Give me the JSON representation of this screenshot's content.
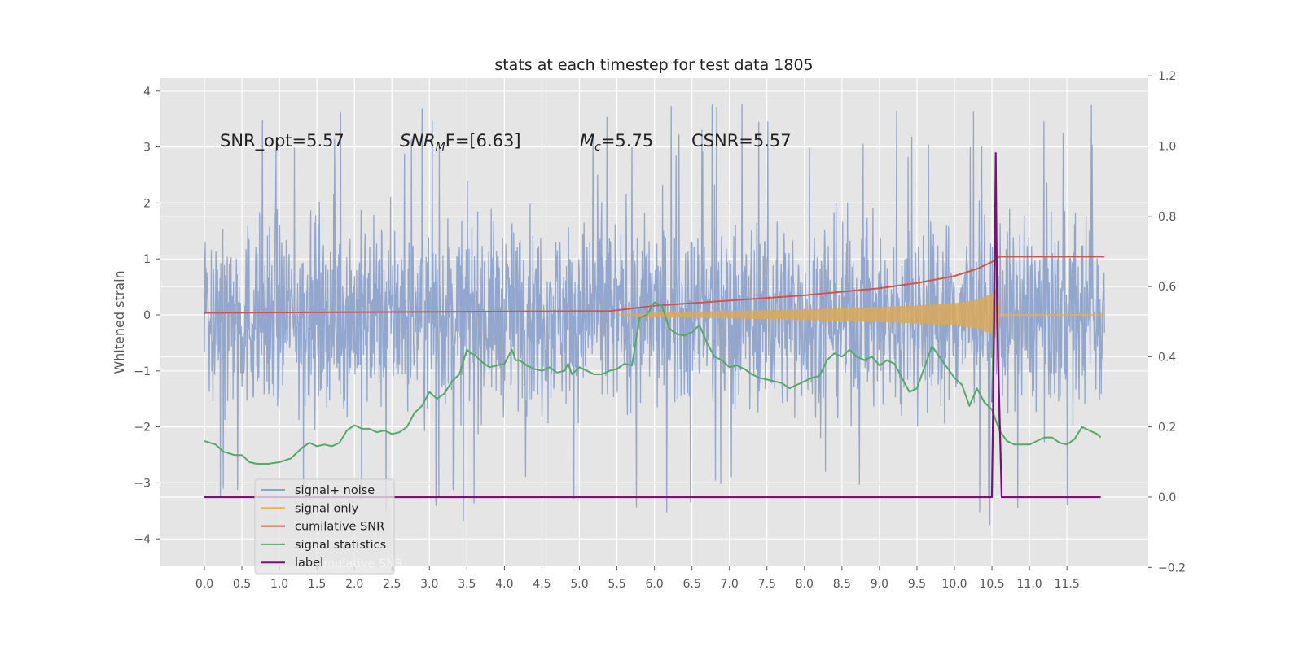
{
  "chart_data": {
    "type": "line",
    "title": "stats at each timestep for test data 1805",
    "xlabel": "",
    "ylabel": "Whitened strain",
    "xlim": [
      -0.58,
      12.6
    ],
    "ylim": [
      -4.5,
      4.25
    ],
    "y2lim": [
      -0.2,
      1.2
    ],
    "x_ticks": [
      "0.0",
      "0.5",
      "1.0",
      "1.5",
      "2.0",
      "2.5",
      "3.0",
      "3.5",
      "4.0",
      "4.5",
      "5.0",
      "5.5",
      "6.0",
      "6.5",
      "7.0",
      "7.5",
      "8.0",
      "8.5",
      "9.0",
      "9.5",
      "10.0",
      "10.5",
      "11.0",
      "11.5"
    ],
    "y_ticks": [
      "4",
      "3",
      "2",
      "1",
      "0",
      "−1",
      "−2",
      "−3",
      "−4"
    ],
    "y2_ticks": [
      "1.2",
      "1.0",
      "0.8",
      "0.6",
      "0.4",
      "0.2",
      "0.0",
      "−0.2"
    ],
    "grid": true,
    "legend_position": "bottom-left",
    "annotations": {
      "snr_opt": "SNR_opt=5.57",
      "snr_mf_main": "SNR",
      "snr_mf_sub": "M",
      "snr_mf_rest": "F=[6.63]",
      "mc_main": "M",
      "mc_sub": "c",
      "mc_rest": "=5.75",
      "csnr": "CSNR=5.57"
    },
    "series": [
      {
        "name": "signal+ noise",
        "color": "#8da2cc",
        "axis": "left",
        "description_values": "noise band approx amplitude ±1.8 with spikes to ±3.9, 0 to 12.0"
      },
      {
        "name": "signal only",
        "color": "#e8b44a",
        "axis": "left",
        "envelope_x": [
          5.4,
          6.0,
          7.0,
          8.0,
          9.0,
          9.5,
          10.0,
          10.3,
          10.5,
          10.58,
          10.6,
          12.0
        ],
        "envelope_y": [
          0.0,
          0.04,
          0.07,
          0.1,
          0.14,
          0.17,
          0.21,
          0.27,
          0.38,
          0.5,
          0.0,
          0.0
        ]
      },
      {
        "name": "cumilative SNR",
        "color": "#d0544e",
        "axis": "right",
        "x": [
          0.0,
          5.4,
          6.0,
          7.0,
          8.0,
          9.0,
          9.5,
          10.0,
          10.3,
          10.5,
          10.6,
          12.0
        ],
        "y": [
          0.525,
          0.53,
          0.545,
          0.56,
          0.575,
          0.595,
          0.61,
          0.63,
          0.65,
          0.67,
          0.685,
          0.685
        ]
      },
      {
        "name": "signal statistics",
        "color": "#55a868",
        "axis": "right",
        "x": [
          0.0,
          0.15,
          0.25,
          0.4,
          0.5,
          0.6,
          0.7,
          0.85,
          1.0,
          1.15,
          1.3,
          1.4,
          1.5,
          1.6,
          1.7,
          1.8,
          1.9,
          2.0,
          2.1,
          2.2,
          2.3,
          2.4,
          2.5,
          2.6,
          2.7,
          2.8,
          2.9,
          3.0,
          3.1,
          3.2,
          3.3,
          3.4,
          3.5,
          3.55,
          3.6,
          3.7,
          3.8,
          3.9,
          4.0,
          4.1,
          4.15,
          4.2,
          4.3,
          4.4,
          4.5,
          4.6,
          4.7,
          4.8,
          4.85,
          4.9,
          5.0,
          5.1,
          5.2,
          5.3,
          5.4,
          5.5,
          5.6,
          5.7,
          5.8,
          5.9,
          6.0,
          6.05,
          6.1,
          6.2,
          6.3,
          6.4,
          6.5,
          6.6,
          6.7,
          6.8,
          6.9,
          7.0,
          7.1,
          7.2,
          7.3,
          7.4,
          7.5,
          7.6,
          7.7,
          7.8,
          7.9,
          8.0,
          8.1,
          8.2,
          8.3,
          8.4,
          8.5,
          8.6,
          8.7,
          8.8,
          8.9,
          9.0,
          9.1,
          9.2,
          9.3,
          9.4,
          9.5,
          9.6,
          9.7,
          9.8,
          9.9,
          10.0,
          10.1,
          10.2,
          10.3,
          10.4,
          10.5,
          10.6,
          10.7,
          10.8,
          10.9,
          11.0,
          11.1,
          11.2,
          11.3,
          11.4,
          11.5,
          11.6,
          11.7,
          11.8,
          11.9,
          11.95
        ],
        "y": [
          0.16,
          0.15,
          0.13,
          0.12,
          0.12,
          0.1,
          0.095,
          0.095,
          0.1,
          0.11,
          0.14,
          0.155,
          0.145,
          0.15,
          0.145,
          0.155,
          0.19,
          0.205,
          0.195,
          0.195,
          0.185,
          0.19,
          0.18,
          0.185,
          0.2,
          0.24,
          0.26,
          0.3,
          0.28,
          0.295,
          0.33,
          0.35,
          0.42,
          0.41,
          0.405,
          0.385,
          0.37,
          0.375,
          0.38,
          0.42,
          0.39,
          0.39,
          0.375,
          0.365,
          0.36,
          0.37,
          0.355,
          0.36,
          0.38,
          0.35,
          0.37,
          0.36,
          0.35,
          0.35,
          0.36,
          0.365,
          0.38,
          0.375,
          0.51,
          0.52,
          0.555,
          0.55,
          0.545,
          0.48,
          0.465,
          0.46,
          0.47,
          0.49,
          0.44,
          0.4,
          0.39,
          0.37,
          0.375,
          0.365,
          0.35,
          0.34,
          0.335,
          0.33,
          0.325,
          0.31,
          0.32,
          0.33,
          0.34,
          0.345,
          0.39,
          0.41,
          0.4,
          0.42,
          0.4,
          0.39,
          0.4,
          0.375,
          0.39,
          0.38,
          0.34,
          0.3,
          0.31,
          0.37,
          0.43,
          0.4,
          0.37,
          0.34,
          0.32,
          0.26,
          0.31,
          0.27,
          0.25,
          0.19,
          0.16,
          0.15,
          0.15,
          0.15,
          0.16,
          0.17,
          0.17,
          0.155,
          0.15,
          0.165,
          0.2,
          0.19,
          0.18,
          0.17
        ],
        "spike_x": 10.55,
        "spike_y": 0.86
      },
      {
        "name": "label",
        "color": "#7b0f7e",
        "axis": "right",
        "x": [
          0.0,
          10.5,
          10.53,
          10.55,
          10.57,
          10.63,
          11.95
        ],
        "y": [
          0.0,
          0.0,
          0.5,
          0.98,
          0.5,
          0.0,
          0.0
        ]
      }
    ],
    "legend_bleed_text": "mulative SNR"
  }
}
